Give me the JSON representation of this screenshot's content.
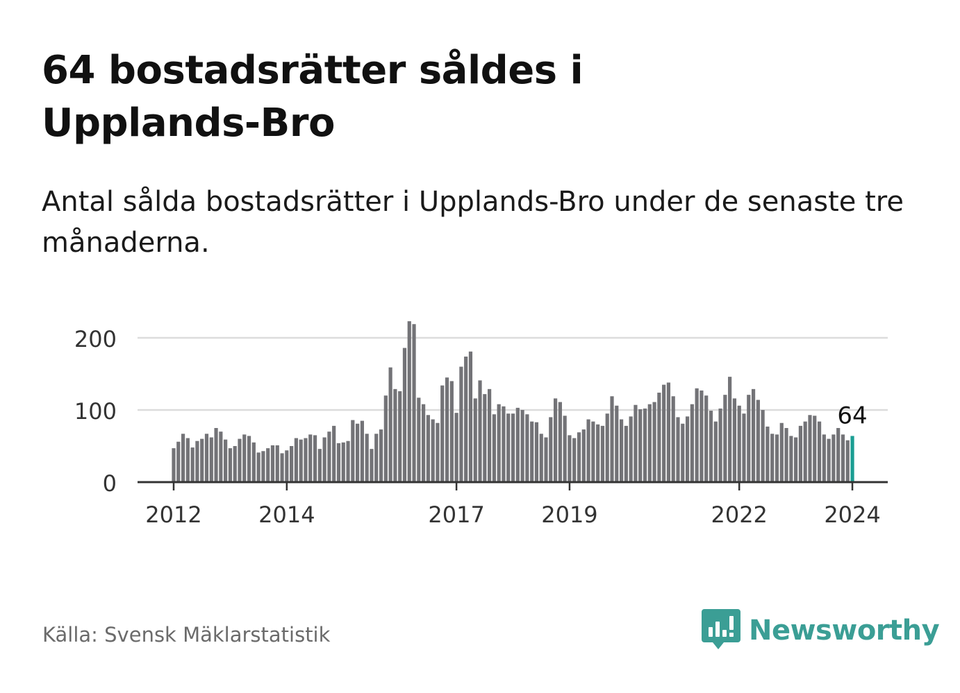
{
  "title": "64 bostadsrätter såldes i Upplands-Bro",
  "subtitle": "Antal sålda bostadsrätter i Upplands-Bro under de senaste tre månaderna.",
  "source": "Källa: Svensk Mäklarstatistik",
  "brand": {
    "name": "Newsworthy",
    "color": "#3b9e95"
  },
  "chart_data": {
    "type": "bar",
    "title": "64 bostadsrätter såldes i Upplands-Bro",
    "xlabel": "",
    "ylabel": "",
    "ylim": [
      0,
      230
    ],
    "yticks": [
      0,
      100,
      200
    ],
    "grid": true,
    "x_start": "2012-01",
    "x_ticks": [
      {
        "label": "2012",
        "index": 0
      },
      {
        "label": "2014",
        "index": 24
      },
      {
        "label": "2017",
        "index": 60
      },
      {
        "label": "2019",
        "index": 84
      },
      {
        "label": "2022",
        "index": 120
      },
      {
        "label": "2024",
        "index": 144
      }
    ],
    "bar_color": "#737377",
    "highlight_color": "#1b9e93",
    "highlight_index": 144,
    "highlight_label": "64",
    "series": [
      {
        "name": "Antal sålda bostadsrätter",
        "values": [
          47,
          56,
          67,
          61,
          48,
          57,
          60,
          67,
          62,
          75,
          70,
          59,
          47,
          50,
          60,
          66,
          64,
          55,
          41,
          43,
          47,
          51,
          51,
          40,
          44,
          50,
          61,
          59,
          61,
          66,
          65,
          46,
          62,
          70,
          78,
          54,
          55,
          57,
          86,
          81,
          85,
          67,
          46,
          67,
          73,
          120,
          159,
          129,
          126,
          186,
          223,
          219,
          117,
          108,
          93,
          87,
          82,
          134,
          145,
          140,
          96,
          160,
          174,
          181,
          116,
          141,
          122,
          129,
          94,
          108,
          105,
          95,
          95,
          103,
          100,
          94,
          84,
          83,
          67,
          62,
          90,
          116,
          111,
          92,
          65,
          61,
          69,
          73,
          87,
          84,
          80,
          78,
          95,
          119,
          106,
          87,
          78,
          91,
          107,
          101,
          102,
          108,
          111,
          124,
          135,
          138,
          119,
          90,
          81,
          91,
          108,
          130,
          127,
          120,
          99,
          84,
          102,
          121,
          146,
          116,
          106,
          95,
          121,
          129,
          114,
          100,
          77,
          67,
          66,
          82,
          75,
          64,
          62,
          78,
          84,
          93,
          92,
          84,
          66,
          60,
          66,
          75,
          66,
          58,
          64
        ]
      }
    ]
  }
}
